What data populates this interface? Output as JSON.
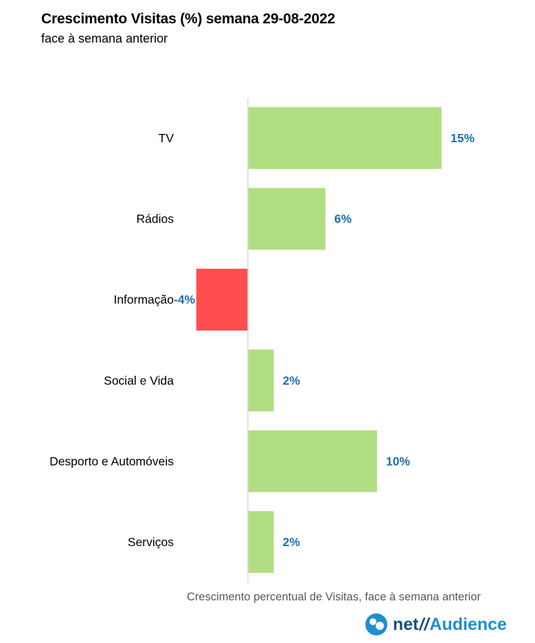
{
  "title": "Crescimento Visitas (%) semana 29-08-2022",
  "subtitle": "face à semana anterior",
  "x_caption": "Crescimento percentual de Visitas, face à semana anterior",
  "logo": {
    "net": "net",
    "slash": "//",
    "audience": "Audience"
  },
  "chart_data": {
    "type": "bar",
    "orientation": "horizontal",
    "categories": [
      "TV",
      "Rádios",
      "Informação",
      "Social e Vida",
      "Desporto e Automóveis",
      "Serviços"
    ],
    "values": [
      15,
      6,
      -4,
      2,
      10,
      2
    ],
    "data_labels": [
      "15%",
      "6%",
      "-4%",
      "2%",
      "10%",
      "2%"
    ],
    "title": "Crescimento Visitas (%) semana 29-08-2022",
    "subtitle": "face à semana anterior",
    "xlabel": "Crescimento percentual de Visitas, face à semana anterior",
    "ylabel": "",
    "xlim": [
      -4,
      15
    ],
    "grid": false,
    "colors": {
      "positive": "#b2de83",
      "negative": "#ff4c4c",
      "data_label": "#1f6fb2",
      "axis": "#d9d9d9",
      "category_label": "#000000"
    }
  }
}
